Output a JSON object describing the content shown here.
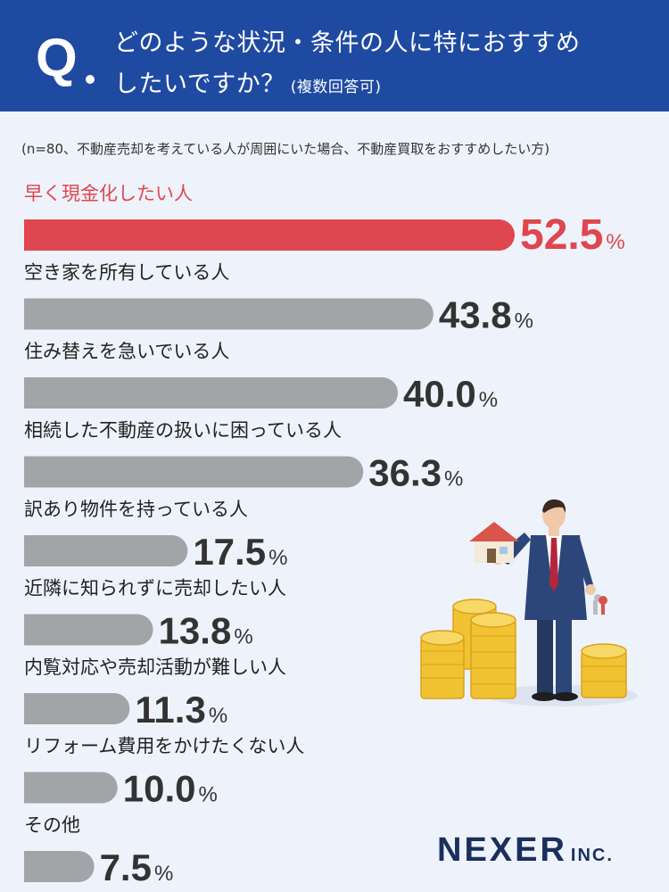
{
  "header": {
    "q_letter": "Q",
    "question_line1": "どのような状況・条件の人に特におすすめ",
    "question_line2": "したいですか？",
    "question_note": "(複数回答可)"
  },
  "survey_note": "(n=80、不動産売却を考えている人が周囲にいた場合、不動産買取をおすすめしたい方)",
  "chart_data": {
    "type": "bar",
    "orientation": "horizontal",
    "categories": [
      "早く現金化したい人",
      "空き家を所有している人",
      "住み替えを急いでいる人",
      "相続した不動産の扱いに困っている人",
      "訳あり物件を持っている人",
      "近隣に知られずに売却したい人",
      "内覧対応や売却活動が難しい人",
      "リフォーム費用をかけたくない人",
      "その他"
    ],
    "values": [
      52.5,
      43.8,
      40.0,
      36.3,
      17.5,
      13.8,
      11.3,
      10.0,
      7.5
    ],
    "value_labels": [
      "52.5",
      "43.8",
      "40.0",
      "36.3",
      "17.5",
      "13.8",
      "11.3",
      "10.0",
      "7.5"
    ],
    "unit": "%",
    "highlight_index": 0,
    "colors": {
      "highlight": "#e0464f",
      "default": "#a3a4a8"
    }
  },
  "illustration": {
    "icon": "businessman-with-house-keys-coins-icon",
    "colors": {
      "suit": "#2d4679",
      "coin": "#f1c232",
      "house_roof": "#d9544a"
    }
  },
  "logo": {
    "name": "NEXER",
    "suffix": "INC."
  }
}
